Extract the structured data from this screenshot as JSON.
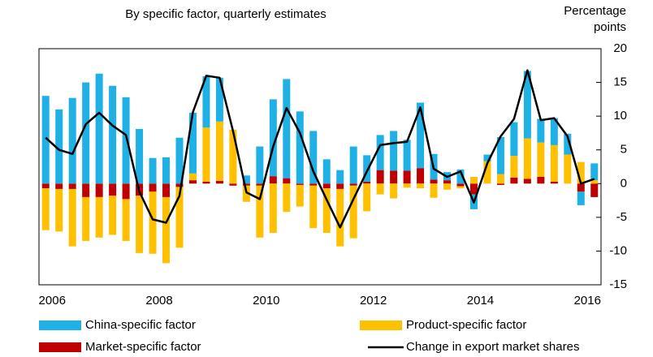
{
  "chart_data": {
    "type": "bar",
    "subtitle": "By specific factor, quarterly estimates",
    "y_label": "Percentage points",
    "categories": [
      "2006",
      null,
      null,
      null,
      null,
      null,
      null,
      null,
      "2008",
      null,
      null,
      null,
      null,
      null,
      null,
      null,
      "2010",
      null,
      null,
      null,
      null,
      null,
      null,
      null,
      "2012",
      null,
      null,
      null,
      null,
      null,
      null,
      null,
      "2014",
      null,
      null,
      null,
      null,
      null,
      null,
      null,
      "2016",
      null
    ],
    "ylim": [
      -15,
      20
    ],
    "yticks": [
      20,
      15,
      10,
      5,
      0,
      -5,
      -10,
      -15
    ],
    "series": [
      {
        "name": "China-specific factor",
        "type": "bar",
        "color": "#1fb0e6",
        "values": [
          13,
          11,
          12.7,
          15,
          16.3,
          14.5,
          12.8,
          8.1,
          3.8,
          3.9,
          6.8,
          9,
          7.6,
          6.5,
          0,
          1.2,
          5.5,
          11.4,
          14.7,
          10.7,
          7.8,
          3.6,
          2,
          5.5,
          3.9,
          5.2,
          5.9,
          4.6,
          9.7,
          3.8,
          1.2,
          2.1,
          -2.2,
          1,
          5.5,
          5,
          10,
          3.5,
          4,
          3.1,
          -2,
          2.5
        ]
      },
      {
        "name": "Product-specific factor",
        "type": "bar",
        "color": "#ffc000",
        "values": [
          -6.2,
          -6.3,
          -8.5,
          -6.5,
          -6,
          -5.8,
          -6.2,
          -8.5,
          -9.2,
          -9.8,
          -9,
          1,
          8,
          8.8,
          8,
          -2.4,
          -7.7,
          -7.3,
          -4.2,
          -3.2,
          -6.3,
          -6.6,
          -8.5,
          -7.8,
          -4.1,
          -1.6,
          -2.2,
          -0.6,
          -0.7,
          -2.1,
          -0.9,
          -0.3,
          1,
          3.3,
          1.4,
          3.2,
          6,
          5.1,
          5.4,
          4.3,
          3.2,
          0.5
        ]
      },
      {
        "name": "Market-specific factor",
        "type": "bar",
        "color": "#c00000",
        "values": [
          -0.7,
          -0.8,
          -0.8,
          -2,
          -2,
          -1.8,
          -2.3,
          -1.8,
          -1.2,
          -2,
          -0.5,
          0.5,
          0.3,
          0.4,
          -0.3,
          -0.3,
          -0.3,
          1.1,
          0.8,
          -0.2,
          -0.3,
          -0.7,
          -0.8,
          -0.3,
          0.3,
          2,
          1.9,
          1.9,
          2.3,
          0.6,
          0.5,
          -0.4,
          -1.6,
          0,
          -0.2,
          0.9,
          0.7,
          1,
          0.3,
          0,
          -1.2,
          -2
        ]
      },
      {
        "name": "Change in export market shares",
        "type": "line",
        "color": "#000000",
        "values": [
          6.8,
          5,
          4.4,
          8.8,
          10.5,
          8.6,
          7.2,
          -1.2,
          -5.3,
          -5.8,
          -1.8,
          10.6,
          16,
          15.7,
          7.8,
          -1.3,
          -2.3,
          5.5,
          11.2,
          7.5,
          1.8,
          -2.4,
          -6.5,
          -2.3,
          1.8,
          5.7,
          6,
          6.2,
          11.3,
          2.2,
          1,
          1.8,
          -2.8,
          3,
          7,
          9.6,
          16.8,
          9.4,
          9.7,
          7,
          0,
          0.7
        ]
      }
    ]
  }
}
